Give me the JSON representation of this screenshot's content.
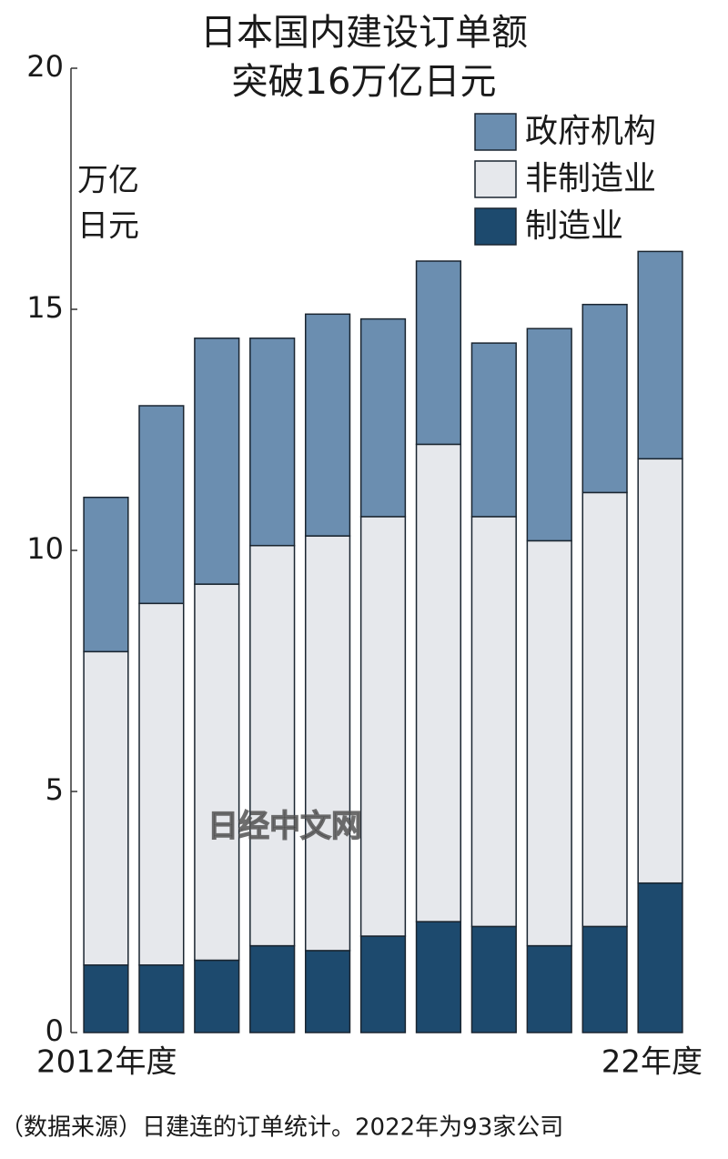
{
  "chart_data": {
    "type": "stacked_bar",
    "title": [
      "日本国内建设订单额",
      "突破16万亿日元"
    ],
    "ylabel": [
      "万亿",
      "日元"
    ],
    "categories": [
      "2012年度",
      null,
      null,
      null,
      null,
      null,
      null,
      null,
      null,
      null,
      "22年度"
    ],
    "series": [
      {
        "name": "制造业",
        "color": "#1d4a6e",
        "values": [
          1.4,
          1.4,
          1.5,
          1.8,
          1.7,
          2.0,
          2.3,
          2.2,
          1.8,
          2.2,
          3.1
        ]
      },
      {
        "name": "非制造业",
        "color": "#e6e8ec",
        "values": [
          6.5,
          7.5,
          7.8,
          8.3,
          8.6,
          8.7,
          9.9,
          8.5,
          8.4,
          9.0,
          8.8
        ]
      },
      {
        "name": "政府机构",
        "color": "#6b8eb0",
        "values": [
          3.2,
          4.1,
          5.1,
          4.3,
          4.6,
          4.1,
          3.8,
          3.6,
          4.4,
          3.9,
          4.3
        ]
      }
    ],
    "ylim": [
      0,
      20
    ],
    "yticks": [
      0,
      5,
      10,
      15,
      20
    ],
    "source": "（数据来源）日建连的订单统计。2022年为93家公司",
    "watermark": "日经中文网"
  }
}
